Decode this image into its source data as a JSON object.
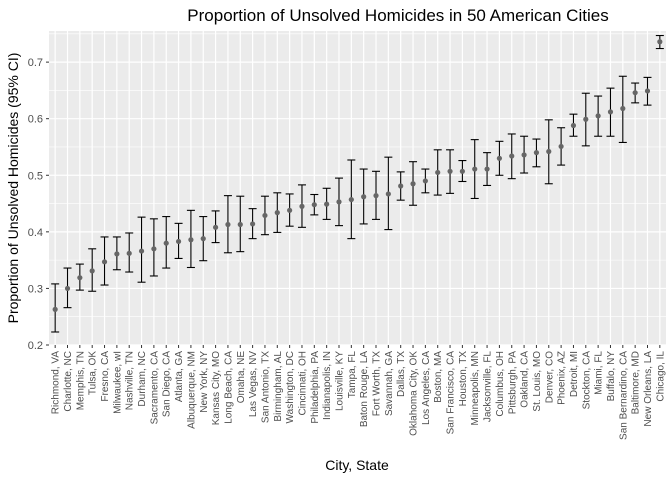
{
  "chart_data": {
    "type": "scatter",
    "title": "Proportion of Unsolved Homicides in 50 American Cities",
    "xlabel": "City, State",
    "ylabel": "Proportion of Unsolved Homicides (95% CI)",
    "ylim": [
      0.2,
      0.755
    ],
    "yticks": [
      0.2,
      0.3,
      0.4,
      0.5,
      0.6,
      0.7
    ],
    "yticklabels": [
      "0.2",
      "0.3",
      "0.4",
      "0.5",
      "0.6",
      "0.7"
    ],
    "grid": true,
    "background": "#ebebeb",
    "point_color": "#666666",
    "errorbar_color": "#000000",
    "points": [
      {
        "city": "Richmond, VA",
        "estimate": 0.263,
        "lower": 0.223,
        "upper": 0.308
      },
      {
        "city": "Charlotte, NC",
        "estimate": 0.3,
        "lower": 0.266,
        "upper": 0.336
      },
      {
        "city": "Memphis, TN",
        "estimate": 0.319,
        "lower": 0.297,
        "upper": 0.343
      },
      {
        "city": "Tulsa, OK",
        "estimate": 0.331,
        "lower": 0.295,
        "upper": 0.37
      },
      {
        "city": "Fresno, CA",
        "estimate": 0.347,
        "lower": 0.306,
        "upper": 0.391
      },
      {
        "city": "Milwaukee, wI",
        "estimate": 0.361,
        "lower": 0.333,
        "upper": 0.391
      },
      {
        "city": "Nashville, TN",
        "estimate": 0.362,
        "lower": 0.329,
        "upper": 0.398
      },
      {
        "city": "Durham, NC",
        "estimate": 0.366,
        "lower": 0.311,
        "upper": 0.426
      },
      {
        "city": "Sacramento, CA",
        "estimate": 0.37,
        "lower": 0.322,
        "upper": 0.423
      },
      {
        "city": "San Diego, CA",
        "estimate": 0.38,
        "lower": 0.336,
        "upper": 0.427
      },
      {
        "city": "Atlanta, GA",
        "estimate": 0.383,
        "lower": 0.353,
        "upper": 0.415
      },
      {
        "city": "Albuquerque, NM",
        "estimate": 0.386,
        "lower": 0.337,
        "upper": 0.438
      },
      {
        "city": "New York, NY",
        "estimate": 0.388,
        "lower": 0.349,
        "upper": 0.427
      },
      {
        "city": "Kansas City, MO",
        "estimate": 0.408,
        "lower": 0.381,
        "upper": 0.437
      },
      {
        "city": "Long Beach, CA",
        "estimate": 0.413,
        "lower": 0.363,
        "upper": 0.464
      },
      {
        "city": "Omaha, NE",
        "estimate": 0.413,
        "lower": 0.365,
        "upper": 0.463
      },
      {
        "city": "Las Vegas, NV",
        "estimate": 0.414,
        "lower": 0.388,
        "upper": 0.441
      },
      {
        "city": "San Antonio, TX",
        "estimate": 0.429,
        "lower": 0.395,
        "upper": 0.463
      },
      {
        "city": "Birmingham, AL",
        "estimate": 0.434,
        "lower": 0.399,
        "upper": 0.469
      },
      {
        "city": "Washington, DC",
        "estimate": 0.438,
        "lower": 0.41,
        "upper": 0.467
      },
      {
        "city": "Cincinnati, OH",
        "estimate": 0.445,
        "lower": 0.408,
        "upper": 0.483
      },
      {
        "city": "Philadelphia, PA",
        "estimate": 0.448,
        "lower": 0.43,
        "upper": 0.466
      },
      {
        "city": "Indianapolis, IN",
        "estimate": 0.449,
        "lower": 0.422,
        "upper": 0.477
      },
      {
        "city": "Louisville, KY",
        "estimate": 0.453,
        "lower": 0.411,
        "upper": 0.495
      },
      {
        "city": "Tampa, FL",
        "estimate": 0.457,
        "lower": 0.388,
        "upper": 0.527
      },
      {
        "city": "Baton Rouge, LA",
        "estimate": 0.462,
        "lower": 0.414,
        "upper": 0.511
      },
      {
        "city": "Fort Worth, TX",
        "estimate": 0.464,
        "lower": 0.422,
        "upper": 0.507
      },
      {
        "city": "Savannah, GA",
        "estimate": 0.467,
        "lower": 0.404,
        "upper": 0.532
      },
      {
        "city": "Dallas, TX",
        "estimate": 0.481,
        "lower": 0.456,
        "upper": 0.506
      },
      {
        "city": "Oklahoma City, OK",
        "estimate": 0.485,
        "lower": 0.447,
        "upper": 0.524
      },
      {
        "city": "Los Angeles, CA",
        "estimate": 0.49,
        "lower": 0.469,
        "upper": 0.511
      },
      {
        "city": "Boston, MA",
        "estimate": 0.505,
        "lower": 0.465,
        "upper": 0.545
      },
      {
        "city": "San Francisco, CA",
        "estimate": 0.507,
        "lower": 0.468,
        "upper": 0.545
      },
      {
        "city": "Houston, TX",
        "estimate": 0.507,
        "lower": 0.489,
        "upper": 0.526
      },
      {
        "city": "Minneapolis, MN",
        "estimate": 0.511,
        "lower": 0.459,
        "upper": 0.563
      },
      {
        "city": "Jacksonville, FL",
        "estimate": 0.511,
        "lower": 0.482,
        "upper": 0.54
      },
      {
        "city": "Columbus, OH",
        "estimate": 0.53,
        "lower": 0.5,
        "upper": 0.56
      },
      {
        "city": "Pittsburgh, PA",
        "estimate": 0.534,
        "lower": 0.494,
        "upper": 0.573
      },
      {
        "city": "Oakland, CA",
        "estimate": 0.536,
        "lower": 0.504,
        "upper": 0.569
      },
      {
        "city": "St. Louis, MO",
        "estimate": 0.54,
        "lower": 0.515,
        "upper": 0.564
      },
      {
        "city": "Denver, CO",
        "estimate": 0.542,
        "lower": 0.485,
        "upper": 0.598
      },
      {
        "city": "Phoenix, AZ",
        "estimate": 0.551,
        "lower": 0.518,
        "upper": 0.584
      },
      {
        "city": "Detroit, MI",
        "estimate": 0.588,
        "lower": 0.569,
        "upper": 0.608
      },
      {
        "city": "Stockton, CA",
        "estimate": 0.599,
        "lower": 0.552,
        "upper": 0.645
      },
      {
        "city": "Miami, FL",
        "estimate": 0.605,
        "lower": 0.569,
        "upper": 0.64
      },
      {
        "city": "Buffalo, NY",
        "estimate": 0.612,
        "lower": 0.569,
        "upper": 0.654
      },
      {
        "city": "San Bernardino, CA",
        "estimate": 0.618,
        "lower": 0.558,
        "upper": 0.675
      },
      {
        "city": "Baltimore, MD",
        "estimate": 0.646,
        "lower": 0.628,
        "upper": 0.663
      },
      {
        "city": "New Orleans, LA",
        "estimate": 0.649,
        "lower": 0.624,
        "upper": 0.673
      },
      {
        "city": "Chicago, IL",
        "estimate": 0.736,
        "lower": 0.724,
        "upper": 0.747
      }
    ]
  }
}
